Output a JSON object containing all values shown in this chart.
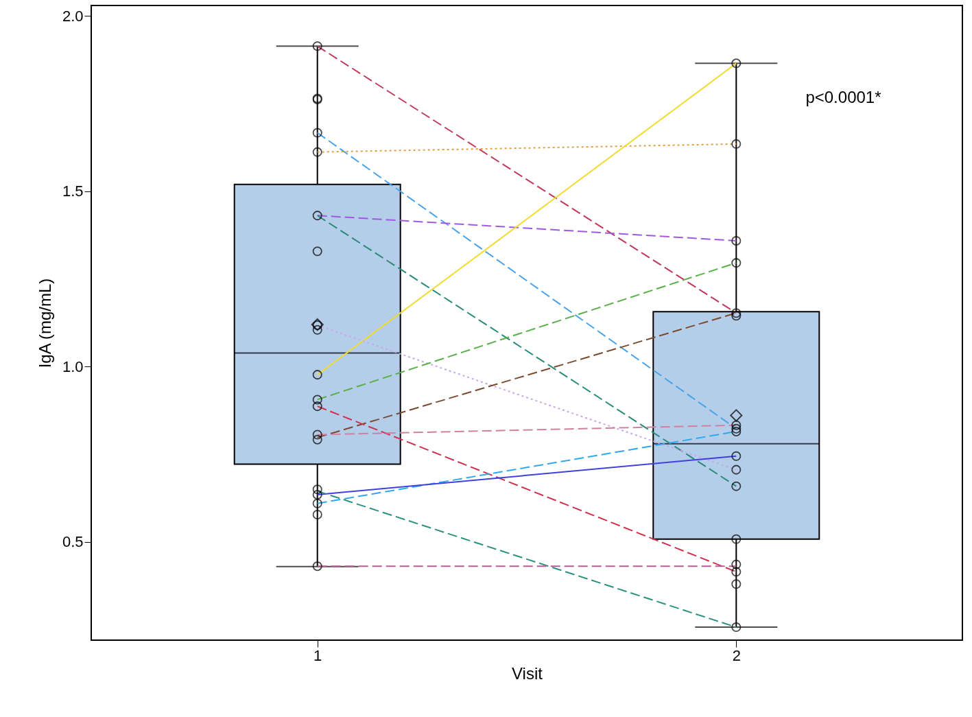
{
  "chart_data": {
    "type": "box",
    "xlabel": "Visit",
    "ylabel": "IgA (mg/mL)",
    "categories": [
      "1",
      "2"
    ],
    "ylim": [
      0.22,
      2.03
    ],
    "yticks": [
      0.5,
      {
        "value": 1,
        "label": "1.0"
      },
      1.5,
      {
        "value": 2,
        "label": "2.0"
      }
    ],
    "grid": false,
    "annotations": [
      "p<0.0001*"
    ],
    "series": [
      {
        "color": "#b4cde8",
        "boxes": [
          {
            "low": 0.43,
            "q1": 0.722,
            "median": 1.039,
            "q3": 1.52,
            "high": 1.914,
            "mean": 1.12
          },
          {
            "low": 0.257,
            "q1": 0.508,
            "median": 0.78,
            "q3": 1.157,
            "high": 1.865,
            "mean": 0.861
          }
        ]
      },
      {
        "type": "line",
        "color": "#c0395a",
        "line_style": "dashed",
        "x": [
          "1",
          "2"
        ],
        "values": [
          1.914,
          1.153
        ]
      },
      {
        "type": "line",
        "color": "#4aa3e8",
        "line_style": "dashed",
        "x": [
          "1",
          "2"
        ],
        "values": [
          1.667,
          0.823
        ]
      },
      {
        "type": "line",
        "color": "#e0a040",
        "line_style": "dotted",
        "x": [
          "1",
          "2"
        ],
        "values": [
          1.612,
          1.635
        ]
      },
      {
        "type": "line",
        "color": "#a05ae0",
        "line_style": "dashed",
        "x": [
          "1",
          "2"
        ],
        "values": [
          1.431,
          1.359
        ]
      },
      {
        "type": "line",
        "color": "#2a8a7a",
        "line_style": "dashed",
        "x": [
          "1",
          "2"
        ],
        "values": [
          1.431,
          0.659
        ]
      },
      {
        "type": "line",
        "color": "#f0dc30",
        "line_style": "solid",
        "x": [
          "1",
          "2"
        ],
        "values": [
          0.977,
          1.865
        ]
      },
      {
        "type": "line",
        "color": "#c8a8e8",
        "line_style": "dotted",
        "x": [
          "1",
          "2"
        ],
        "values": [
          1.118,
          0.706
        ]
      },
      {
        "type": "line",
        "color": "#5ab04a",
        "line_style": "dashed",
        "x": [
          "1",
          "2"
        ],
        "values": [
          0.906,
          1.296
        ]
      },
      {
        "type": "line",
        "color": "#7a4a30",
        "line_style": "dashed",
        "x": [
          "1",
          "2"
        ],
        "values": [
          0.798,
          1.153
        ]
      },
      {
        "type": "line",
        "color": "#d03050",
        "line_style": "dashed",
        "x": [
          "1",
          "2"
        ],
        "values": [
          0.887,
          0.415
        ]
      },
      {
        "type": "line",
        "color": "#d080a0",
        "line_style": "dashed",
        "x": [
          "1",
          "2"
        ],
        "values": [
          0.806,
          0.833
        ]
      },
      {
        "type": "line",
        "color": "#30a8f0",
        "line_style": "dashed",
        "x": [
          "1",
          "2"
        ],
        "values": [
          0.61,
          0.815
        ]
      },
      {
        "type": "line",
        "color": "#4040e0",
        "line_style": "solid",
        "x": [
          "1",
          "2"
        ],
        "values": [
          0.635,
          0.745
        ]
      },
      {
        "type": "line",
        "color": "#2a9080",
        "line_style": "dashed",
        "x": [
          "1",
          "2"
        ],
        "values": [
          0.645,
          0.257
        ]
      },
      {
        "type": "line",
        "color": "#b06090",
        "line_style": "dashed",
        "x": [
          "1",
          "2"
        ],
        "values": [
          0.431,
          0.431
        ]
      },
      {
        "type": "scatter",
        "color": "#000000",
        "marker": "circle",
        "x": [
          "1",
          "1",
          "1",
          "1",
          "1",
          "1",
          "1",
          "1",
          "1",
          "1",
          "1",
          "1",
          "1",
          "1",
          "1",
          "1",
          "1",
          "1",
          "1",
          "2",
          "2",
          "2",
          "2",
          "2",
          "2",
          "2",
          "2",
          "2",
          "2",
          "2",
          "2",
          "2",
          "2",
          "2",
          "2",
          "2"
        ],
        "values": [
          1.914,
          1.765,
          1.762,
          1.667,
          1.612,
          1.431,
          1.329,
          1.118,
          1.105,
          0.977,
          0.906,
          0.887,
          0.806,
          0.792,
          0.65,
          0.635,
          0.61,
          0.578,
          0.431,
          1.865,
          1.635,
          1.359,
          1.296,
          1.153,
          1.145,
          0.833,
          0.823,
          0.815,
          0.745,
          0.706,
          0.659,
          0.508,
          0.436,
          0.415,
          0.38,
          0.257
        ]
      }
    ]
  }
}
